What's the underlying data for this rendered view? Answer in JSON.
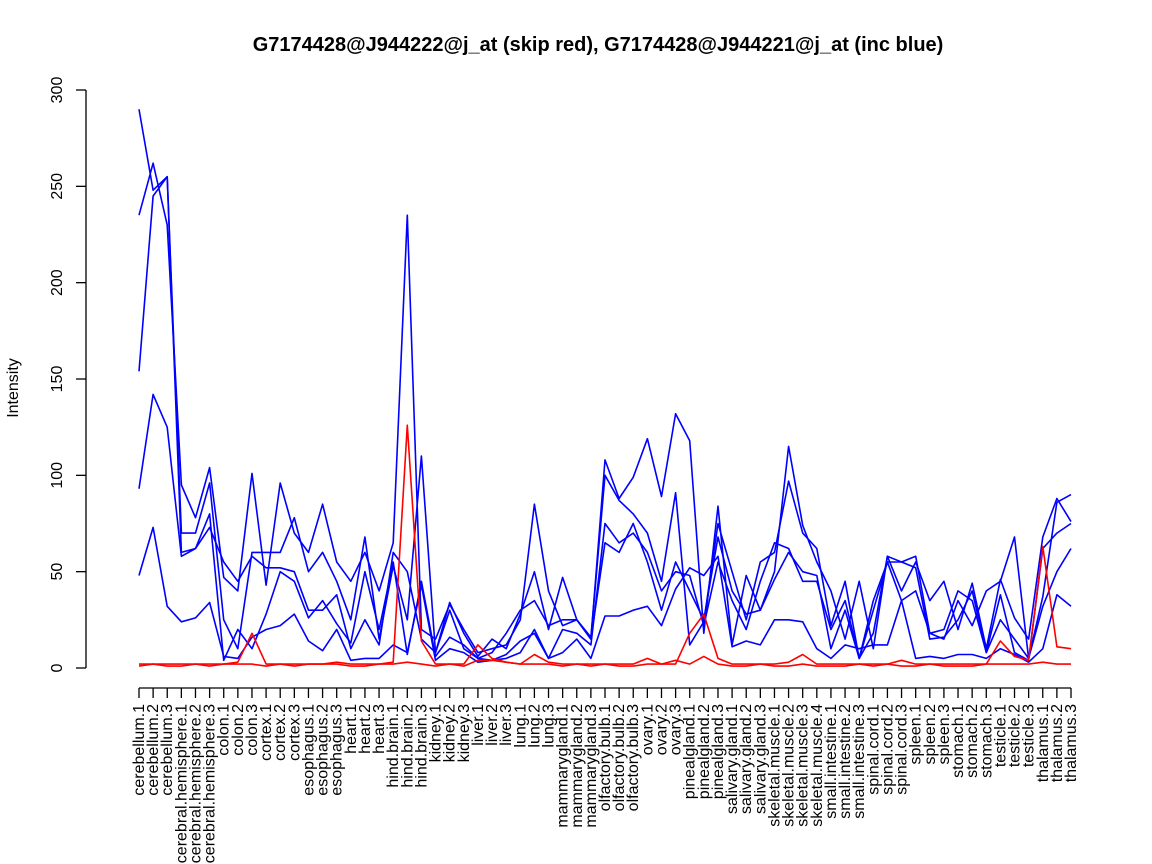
{
  "chart_data": {
    "type": "line",
    "title": "G7174428@J944222@j_at (skip red), G7174428@J944221@j_at (inc blue)",
    "xlabel": "",
    "ylabel": "Intensity",
    "ylim": [
      0,
      300
    ],
    "yticks": [
      0,
      50,
      100,
      150,
      200,
      250,
      300
    ],
    "grid": false,
    "legend": "none",
    "colors": {
      "skip": "#ff0000",
      "inc": "#0000ff"
    },
    "categories": [
      "cerebellum.1",
      "cerebellum.2",
      "cerebellum.3",
      "cerebral.hemisphere.1",
      "cerebral.hemisphere.2",
      "cerebral.hemisphere.3",
      "colon.1",
      "colon.2",
      "colon.3",
      "cortex.1",
      "cortex.2",
      "cortex.3",
      "esophagus.1",
      "esophagus.2",
      "esophagus.3",
      "heart.1",
      "heart.2",
      "heart.3",
      "hind.brain.1",
      "hind.brain.2",
      "hind.brain.3",
      "kidney.1",
      "kidney.2",
      "kidney.3",
      "liver.1",
      "liver.2",
      "liver.3",
      "lung.1",
      "lung.2",
      "lung.3",
      "mammarygland.1",
      "mammarygland.2",
      "mammarygland.3",
      "olfactory.bulb.1",
      "olfactory.bulb.2",
      "olfactory.bulb.3",
      "ovary.1",
      "ovary.2",
      "ovary.3",
      "pinealgland.1",
      "pinealgland.2",
      "pinealgland.3",
      "salivary.gland.1",
      "salivary.gland.2",
      "salivary.gland.3",
      "skeletal.muscle.1",
      "skeletal.muscle.2",
      "skeletal.muscle.3",
      "skeletal.muscle.4",
      "small.intestine.1",
      "small.intestine.2",
      "small.intestine.3",
      "spinal.cord.1",
      "spinal.cord.2",
      "spinal.cord.3",
      "spleen.1",
      "spleen.2",
      "spleen.3",
      "stomach.1",
      "stomach.2",
      "stomach.3",
      "testicle.1",
      "testicle.2",
      "testicle.3",
      "thalamus.1",
      "thalamus.2",
      "thalamus.3"
    ],
    "series": [
      {
        "group": "inc",
        "values": [
          235,
          262,
          230,
          95,
          78,
          104,
          47,
          40,
          101,
          43,
          96,
          70,
          60,
          85,
          55,
          45,
          60,
          40,
          65,
          235,
          20,
          15,
          33,
          20,
          8,
          10,
          12,
          25,
          85,
          40,
          22,
          25,
          15,
          108,
          88,
          99,
          119,
          89,
          132,
          118,
          18,
          84,
          12,
          48,
          30,
          50,
          115,
          74,
          55,
          40,
          15,
          45,
          10,
          58,
          40,
          55,
          35,
          45,
          20,
          44,
          10,
          46,
          26,
          15,
          68,
          88,
          76
        ]
      },
      {
        "group": "inc",
        "values": [
          290,
          248,
          255,
          70,
          70,
          96,
          25,
          10,
          60,
          60,
          60,
          78,
          50,
          60,
          45,
          25,
          68,
          15,
          53,
          25,
          110,
          8,
          34,
          18,
          6,
          15,
          10,
          28,
          50,
          20,
          47,
          25,
          16,
          100,
          87,
          80,
          70,
          45,
          91,
          12,
          24,
          75,
          50,
          25,
          55,
          60,
          97,
          70,
          62,
          22,
          45,
          5,
          18,
          58,
          55,
          58,
          18,
          15,
          35,
          22,
          40,
          45,
          68,
          5,
          37,
          86,
          90
        ]
      },
      {
        "group": "inc",
        "values": [
          154,
          245,
          255,
          60,
          62,
          73,
          55,
          45,
          58,
          52,
          52,
          50,
          30,
          30,
          38,
          10,
          25,
          12,
          60,
          50,
          15,
          8,
          30,
          10,
          5,
          8,
          18,
          30,
          35,
          22,
          25,
          25,
          15,
          65,
          60,
          75,
          55,
          30,
          55,
          40,
          25,
          68,
          40,
          28,
          30,
          46,
          60,
          50,
          48,
          10,
          30,
          5,
          35,
          55,
          55,
          52,
          15,
          16,
          25,
          40,
          8,
          38,
          8,
          4,
          62,
          70,
          75
        ]
      },
      {
        "group": "inc",
        "values": [
          93,
          142,
          125,
          58,
          62,
          80,
          4,
          20,
          10,
          28,
          50,
          45,
          26,
          35,
          23,
          13,
          50,
          20,
          55,
          7,
          45,
          6,
          16,
          12,
          5,
          4,
          5,
          8,
          20,
          5,
          20,
          18,
          12,
          75,
          65,
          70,
          60,
          40,
          50,
          48,
          22,
          55,
          35,
          20,
          45,
          65,
          62,
          45,
          45,
          20,
          35,
          5,
          30,
          55,
          35,
          40,
          18,
          20,
          40,
          35,
          8,
          25,
          15,
          5,
          32,
          50,
          62
        ]
      },
      {
        "group": "inc",
        "values": [
          48,
          73,
          32,
          24,
          26,
          34,
          6,
          5,
          16,
          20,
          22,
          28,
          14,
          9,
          20,
          4,
          5,
          5,
          12,
          8,
          43,
          4,
          10,
          8,
          3,
          4,
          7,
          14,
          18,
          5,
          8,
          15,
          5,
          27,
          27,
          30,
          32,
          22,
          41,
          52,
          48,
          58,
          11,
          14,
          12,
          25,
          25,
          24,
          10,
          5,
          12,
          10,
          12,
          12,
          35,
          5,
          6,
          5,
          7,
          7,
          5,
          10,
          7,
          3,
          10,
          38,
          32
        ]
      },
      {
        "group": "skip",
        "values": [
          2,
          2,
          2,
          2,
          2,
          2,
          2,
          3,
          18,
          2,
          2,
          2,
          2,
          2,
          3,
          2,
          2,
          2,
          3,
          126,
          14,
          2,
          2,
          2,
          12,
          5,
          3,
          2,
          7,
          3,
          2,
          2,
          2,
          2,
          2,
          2,
          5,
          2,
          2,
          18,
          28,
          5,
          2,
          2,
          2,
          2,
          3,
          7,
          2,
          2,
          2,
          2,
          2,
          2,
          4,
          2,
          2,
          2,
          2,
          2,
          2,
          14,
          6,
          4,
          63,
          11,
          10
        ]
      },
      {
        "group": "skip",
        "values": [
          1,
          2,
          1,
          1,
          2,
          1,
          2,
          2,
          2,
          1,
          2,
          1,
          2,
          2,
          2,
          1,
          1,
          2,
          2,
          3,
          2,
          1,
          2,
          1,
          4,
          4,
          3,
          2,
          2,
          2,
          1,
          2,
          1,
          2,
          1,
          1,
          2,
          2,
          4,
          2,
          6,
          2,
          1,
          1,
          2,
          1,
          1,
          2,
          1,
          1,
          1,
          2,
          1,
          2,
          1,
          1,
          2,
          1,
          1,
          1,
          2,
          2,
          2,
          2,
          3,
          2,
          2
        ]
      }
    ]
  }
}
